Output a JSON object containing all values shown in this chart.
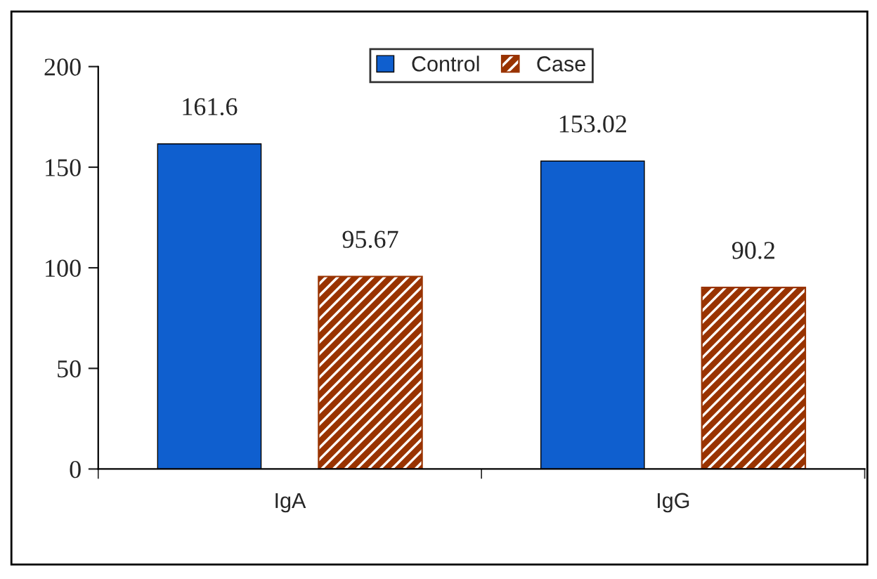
{
  "chart_data": {
    "type": "bar",
    "categories": [
      "IgA",
      "IgG"
    ],
    "series": [
      {
        "name": "Control",
        "color": "#0f5fcf",
        "values": [
          161.6,
          153.02
        ]
      },
      {
        "name": "Case",
        "color": "#993300",
        "values": [
          95.67,
          90.2
        ]
      }
    ],
    "ylim": [
      0,
      200
    ],
    "yticks": [
      0,
      50,
      100,
      150,
      200
    ],
    "grid": false,
    "legend": "top",
    "data_labels": true
  }
}
